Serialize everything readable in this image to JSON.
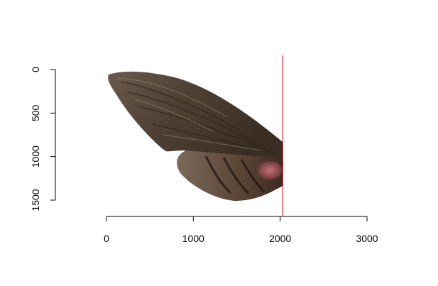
{
  "chart_data": {
    "type": "image",
    "title": "",
    "xlabel": "",
    "ylabel": "",
    "x_ticks": [
      0,
      1000,
      2000,
      3000
    ],
    "y_ticks": [
      0,
      500,
      1000,
      1500
    ],
    "xlim": [
      0,
      3000
    ],
    "ylim": [
      0,
      1500
    ],
    "y_reversed": true,
    "grid": false,
    "image_subject": "moth-wing-photo",
    "image_extent": {
      "x": [
        0,
        2050
      ],
      "y": [
        0,
        1520
      ]
    },
    "reference_line": {
      "orientation": "vertical",
      "x": 2030,
      "color": "#cc0000"
    }
  }
}
